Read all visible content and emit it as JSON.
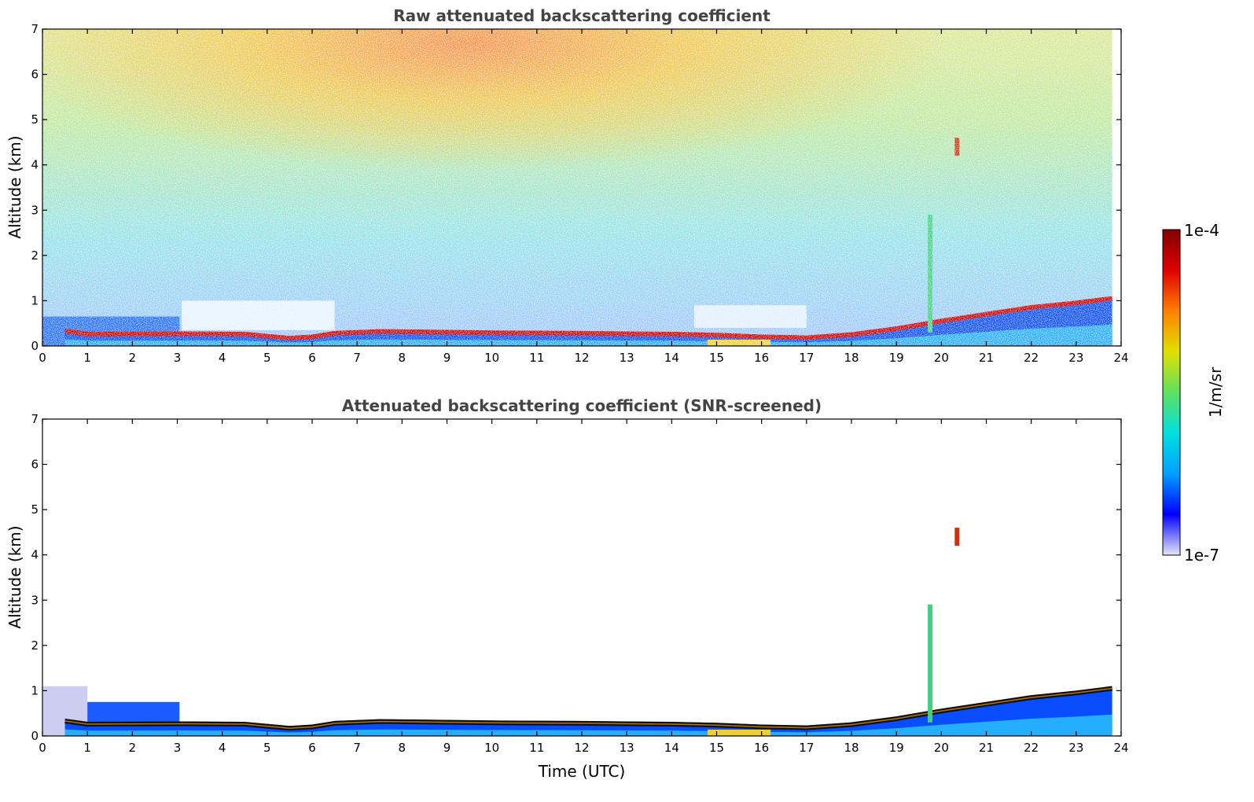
{
  "chart_data": [
    {
      "type": "heatmap",
      "title": "Raw attenuated backscattering coefficient",
      "xlabel": "",
      "ylabel": "Altitude (km)",
      "xlim": [
        0,
        24
      ],
      "ylim": [
        0,
        7
      ],
      "x_ticks": [
        "0",
        "1",
        "2",
        "3",
        "4",
        "5",
        "6",
        "7",
        "8",
        "9",
        "10",
        "11",
        "12",
        "13",
        "14",
        "15",
        "16",
        "17",
        "18",
        "19",
        "20",
        "21",
        "22",
        "23",
        "24"
      ],
      "y_ticks": [
        "0",
        "1",
        "2",
        "3",
        "4",
        "5",
        "6",
        "7"
      ],
      "scale": "log",
      "value_range": [
        1e-07,
        0.0001
      ],
      "layer_top_km": [
        [
          0.5,
          0.33
        ],
        [
          1.0,
          0.26
        ],
        [
          3.1,
          0.27
        ],
        [
          4.5,
          0.26
        ],
        [
          5.5,
          0.17
        ],
        [
          6.0,
          0.2
        ],
        [
          6.5,
          0.28
        ],
        [
          7.5,
          0.32
        ],
        [
          8.5,
          0.31
        ],
        [
          10.0,
          0.29
        ],
        [
          12.0,
          0.28
        ],
        [
          13.0,
          0.27
        ],
        [
          14.0,
          0.26
        ],
        [
          15.0,
          0.24
        ],
        [
          16.0,
          0.2
        ],
        [
          17.0,
          0.18
        ],
        [
          18.0,
          0.25
        ],
        [
          19.0,
          0.38
        ],
        [
          20.0,
          0.55
        ],
        [
          21.0,
          0.7
        ],
        [
          22.0,
          0.85
        ],
        [
          23.0,
          0.95
        ],
        [
          23.8,
          1.05
        ]
      ]
    },
    {
      "type": "heatmap",
      "title": "Attenuated backscattering coefficient (SNR-screened)",
      "xlabel": "Time (UTC)",
      "ylabel": "Altitude (km)",
      "xlim": [
        0,
        24
      ],
      "ylim": [
        0,
        7
      ],
      "x_ticks": [
        "0",
        "1",
        "2",
        "3",
        "4",
        "5",
        "6",
        "7",
        "8",
        "9",
        "10",
        "11",
        "12",
        "13",
        "14",
        "15",
        "16",
        "17",
        "18",
        "19",
        "20",
        "21",
        "22",
        "23",
        "24"
      ],
      "y_ticks": [
        "0",
        "1",
        "2",
        "3",
        "4",
        "5",
        "6",
        "7"
      ],
      "scale": "log",
      "value_range": [
        1e-07,
        0.0001
      ],
      "layer_top_km": [
        [
          0.5,
          0.33
        ],
        [
          1.0,
          0.26
        ],
        [
          3.1,
          0.27
        ],
        [
          4.5,
          0.26
        ],
        [
          5.5,
          0.17
        ],
        [
          6.0,
          0.2
        ],
        [
          6.5,
          0.28
        ],
        [
          7.5,
          0.32
        ],
        [
          8.5,
          0.31
        ],
        [
          10.0,
          0.29
        ],
        [
          12.0,
          0.28
        ],
        [
          13.0,
          0.27
        ],
        [
          14.0,
          0.26
        ],
        [
          15.0,
          0.24
        ],
        [
          16.0,
          0.2
        ],
        [
          17.0,
          0.18
        ],
        [
          18.0,
          0.25
        ],
        [
          19.0,
          0.38
        ],
        [
          20.0,
          0.55
        ],
        [
          21.0,
          0.7
        ],
        [
          22.0,
          0.85
        ],
        [
          23.0,
          0.95
        ],
        [
          23.8,
          1.05
        ]
      ]
    }
  ],
  "colorbar": {
    "label": "1/m/sr",
    "max_label": "1e-4",
    "min_label": "1e-7",
    "colors": [
      "#e6e6f6",
      "#0000ff",
      "#00a0ff",
      "#00e0e0",
      "#60e060",
      "#e0e000",
      "#ff8000",
      "#e00000",
      "#800000"
    ]
  }
}
